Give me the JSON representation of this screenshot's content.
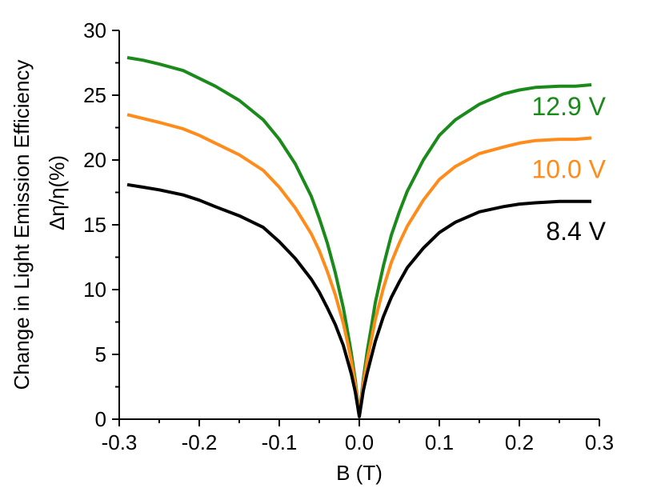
{
  "chart_data": {
    "type": "line",
    "title": "",
    "xlabel": "B (T)",
    "ylabel_line1": "Change in Light Emission Efficiency",
    "ylabel_line2": "Δη/η(%)",
    "xlim": [
      -0.3,
      0.3
    ],
    "ylim": [
      0,
      30
    ],
    "x_ticks": [
      -0.3,
      -0.2,
      -0.1,
      0.0,
      0.1,
      0.2,
      0.3
    ],
    "x_tick_labels": [
      "-0.3",
      "-0.2",
      "-0.1",
      "0.0",
      "0.1",
      "0.2",
      "0.3"
    ],
    "y_ticks": [
      0,
      5,
      10,
      15,
      20,
      25,
      30
    ],
    "y_tick_labels": [
      "0",
      "5",
      "10",
      "15",
      "20",
      "25",
      "30"
    ],
    "grid": false,
    "series": [
      {
        "name": "12.9 V",
        "color": "#1a8a1a",
        "x": [
          -0.29,
          -0.27,
          -0.25,
          -0.22,
          -0.2,
          -0.18,
          -0.15,
          -0.12,
          -0.1,
          -0.08,
          -0.06,
          -0.05,
          -0.04,
          -0.03,
          -0.02,
          -0.015,
          -0.01,
          -0.005,
          0.0,
          0.005,
          0.01,
          0.015,
          0.02,
          0.03,
          0.04,
          0.05,
          0.06,
          0.08,
          0.1,
          0.12,
          0.15,
          0.18,
          0.2,
          0.22,
          0.25,
          0.27,
          0.29
        ],
        "y": [
          27.9,
          27.7,
          27.4,
          26.9,
          26.3,
          25.7,
          24.6,
          23.1,
          21.6,
          19.7,
          17.2,
          15.5,
          13.6,
          11.3,
          8.6,
          6.9,
          5.1,
          3.0,
          0.3,
          3.1,
          5.3,
          7.1,
          9.0,
          11.8,
          14.2,
          16.0,
          17.6,
          20.0,
          21.9,
          23.1,
          24.3,
          25.1,
          25.4,
          25.6,
          25.7,
          25.7,
          25.8
        ]
      },
      {
        "name": "10.0 V",
        "color": "#ff8c1a",
        "x": [
          -0.29,
          -0.27,
          -0.25,
          -0.22,
          -0.2,
          -0.18,
          -0.15,
          -0.12,
          -0.1,
          -0.08,
          -0.06,
          -0.05,
          -0.04,
          -0.03,
          -0.02,
          -0.015,
          -0.01,
          -0.005,
          0.0,
          0.005,
          0.01,
          0.015,
          0.02,
          0.03,
          0.04,
          0.05,
          0.06,
          0.08,
          0.1,
          0.12,
          0.15,
          0.18,
          0.2,
          0.22,
          0.25,
          0.27,
          0.29
        ],
        "y": [
          23.5,
          23.2,
          22.9,
          22.4,
          21.9,
          21.3,
          20.4,
          19.2,
          17.9,
          16.3,
          14.3,
          13.0,
          11.4,
          9.6,
          7.4,
          6.0,
          4.5,
          2.7,
          0.3,
          2.8,
          4.6,
          6.1,
          7.7,
          10.1,
          12.1,
          13.6,
          14.9,
          16.9,
          18.5,
          19.5,
          20.5,
          21.0,
          21.3,
          21.5,
          21.6,
          21.6,
          21.7
        ]
      },
      {
        "name": "8.4 V",
        "color": "#000000",
        "x": [
          -0.29,
          -0.27,
          -0.25,
          -0.22,
          -0.2,
          -0.18,
          -0.15,
          -0.12,
          -0.1,
          -0.08,
          -0.06,
          -0.05,
          -0.04,
          -0.03,
          -0.02,
          -0.015,
          -0.01,
          -0.005,
          0.0,
          0.005,
          0.01,
          0.015,
          0.02,
          0.03,
          0.04,
          0.05,
          0.06,
          0.08,
          0.1,
          0.12,
          0.15,
          0.18,
          0.2,
          0.22,
          0.25,
          0.27,
          0.29
        ],
        "y": [
          18.1,
          17.9,
          17.7,
          17.3,
          16.9,
          16.4,
          15.7,
          14.8,
          13.7,
          12.4,
          10.8,
          9.8,
          8.6,
          7.3,
          5.7,
          4.6,
          3.5,
          2.1,
          0.2,
          2.2,
          3.6,
          4.8,
          6.0,
          7.9,
          9.4,
          10.6,
          11.7,
          13.2,
          14.4,
          15.2,
          16.0,
          16.4,
          16.6,
          16.7,
          16.8,
          16.8,
          16.8
        ]
      }
    ],
    "series_label_anchor": [
      {
        "name": "12.9 V",
        "x": 0.29,
        "y": 25.8
      },
      {
        "name": "10.0 V",
        "x": 0.29,
        "y": 21.7
      },
      {
        "name": "8.4 V",
        "x": 0.29,
        "y": 16.8
      }
    ]
  }
}
